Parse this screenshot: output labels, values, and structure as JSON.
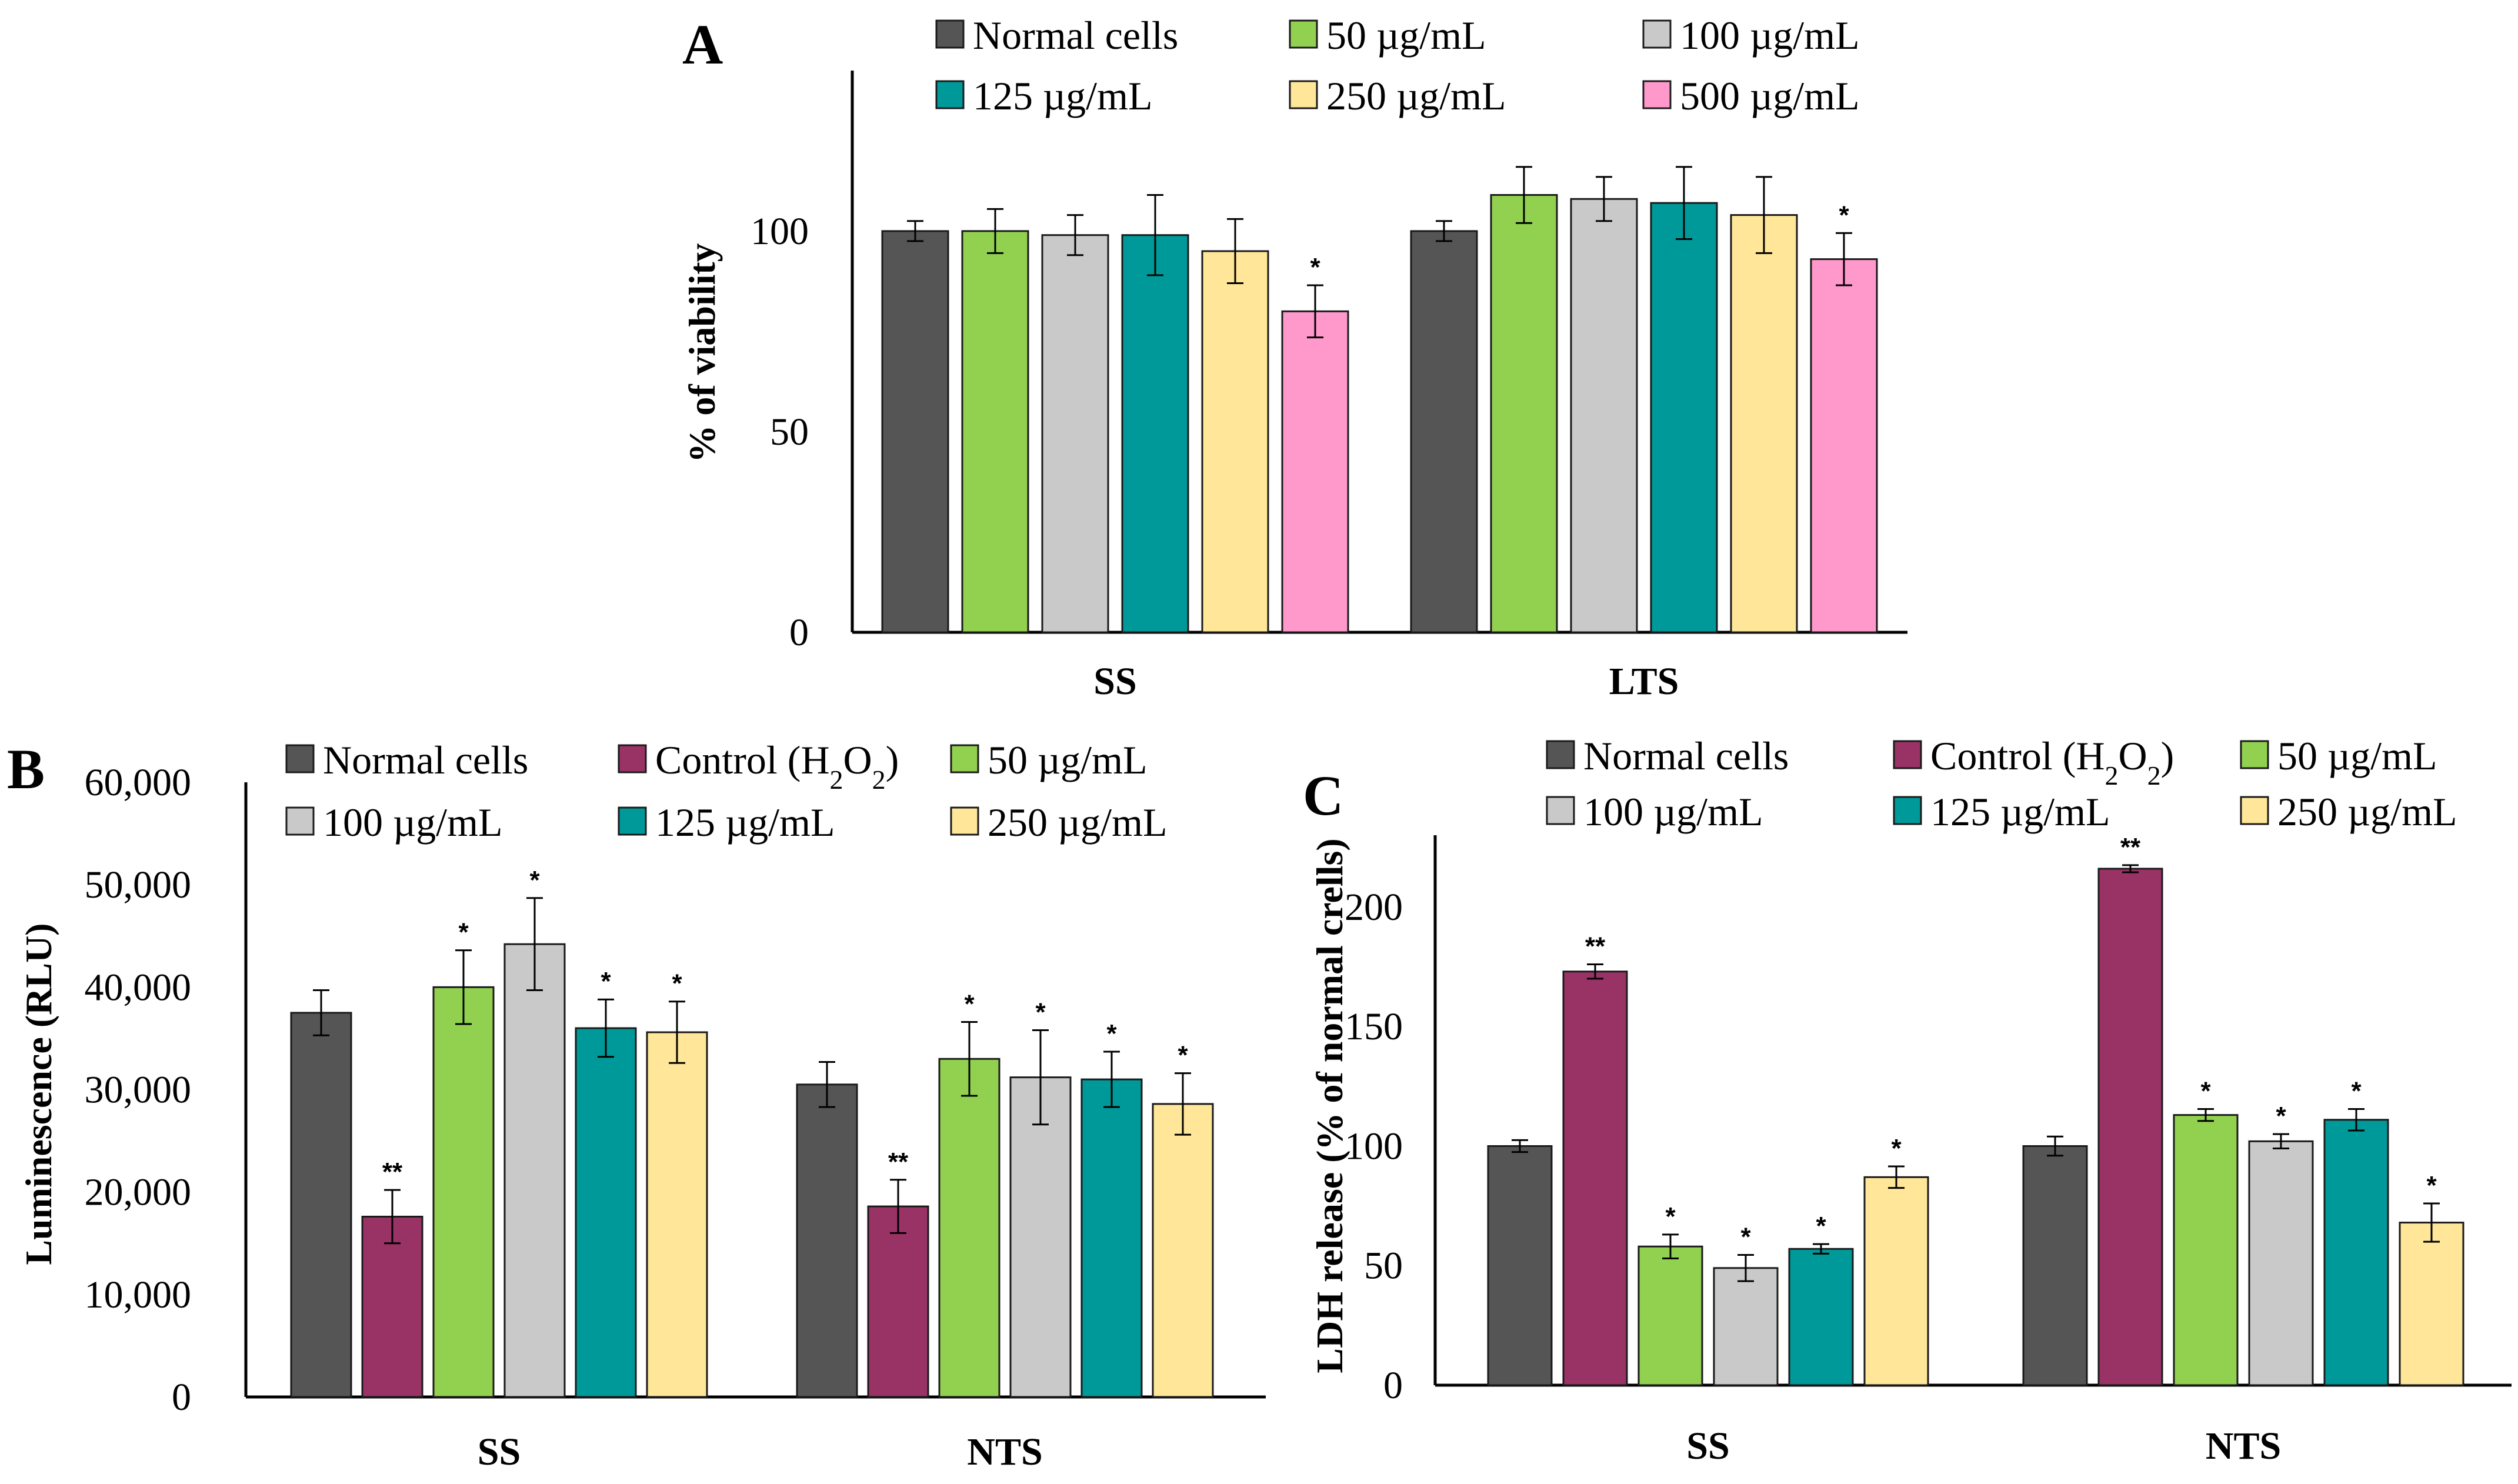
{
  "colors": {
    "Normal cells": "#555555",
    "Control (H2O2)": "#993366",
    "50 µg/mL": "#92d050",
    "100 µg/mL": "#c9c9c9",
    "125 µg/mL": "#009999",
    "250 µg/mL": "#ffe699",
    "500 µg/mL": "#ff99cc"
  },
  "chart_data": [
    {
      "panel": "A",
      "type": "bar",
      "ylabel": "% of viability",
      "xlabel": "",
      "ylim": [
        0,
        140
      ],
      "yticks": [
        0,
        50,
        100
      ],
      "categories": [
        "SS",
        "LTS"
      ],
      "series": [
        {
          "name": "Normal cells",
          "values": [
            100,
            100
          ],
          "errors": [
            2.5,
            2.5
          ],
          "sig": [
            "",
            ""
          ]
        },
        {
          "name": "50 µg/mL",
          "values": [
            100,
            109
          ],
          "errors": [
            5.5,
            7
          ],
          "sig": [
            "",
            ""
          ]
        },
        {
          "name": "100 µg/mL",
          "values": [
            99,
            108
          ],
          "errors": [
            5,
            5.5
          ],
          "sig": [
            "",
            ""
          ]
        },
        {
          "name": "125 µg/mL",
          "values": [
            99,
            107
          ],
          "errors": [
            10,
            9
          ],
          "sig": [
            "",
            ""
          ]
        },
        {
          "name": "250 µg/mL",
          "values": [
            95,
            104
          ],
          "errors": [
            8,
            9.5
          ],
          "sig": [
            "",
            ""
          ]
        },
        {
          "name": "500 µg/mL",
          "values": [
            80,
            93
          ],
          "errors": [
            6.5,
            6.5
          ],
          "sig": [
            "*",
            "*"
          ]
        }
      ]
    },
    {
      "panel": "B",
      "type": "bar",
      "ylabel": "Luminescence (RLU)",
      "xlabel": "",
      "ylim": [
        0,
        60000
      ],
      "yticks": [
        0,
        10000,
        20000,
        30000,
        40000,
        50000,
        60000
      ],
      "ytick_labels": [
        "0",
        "10,000",
        "20,000",
        "30,000",
        "40,000",
        "50,000",
        "60,000"
      ],
      "categories": [
        "SS",
        "NTS"
      ],
      "series": [
        {
          "name": "Normal cells",
          "values": [
            37500,
            30500
          ],
          "errors": [
            2200,
            2200
          ],
          "sig": [
            "",
            ""
          ]
        },
        {
          "name": "Control (H2O2)",
          "values": [
            17600,
            18600
          ],
          "errors": [
            2600,
            2600
          ],
          "sig": [
            "**",
            "**"
          ]
        },
        {
          "name": "50 µg/mL",
          "values": [
            40000,
            33000
          ],
          "errors": [
            3600,
            3600
          ],
          "sig": [
            "*",
            "*"
          ]
        },
        {
          "name": "100 µg/mL",
          "values": [
            44200,
            31200
          ],
          "errors": [
            4500,
            4600
          ],
          "sig": [
            "*",
            "*"
          ]
        },
        {
          "name": "125 µg/mL",
          "values": [
            36000,
            31000
          ],
          "errors": [
            2800,
            2700
          ],
          "sig": [
            "*",
            "*"
          ]
        },
        {
          "name": "250 µg/mL",
          "values": [
            35600,
            28600
          ],
          "errors": [
            3000,
            3000
          ],
          "sig": [
            "*",
            "*"
          ]
        }
      ]
    },
    {
      "panel": "C",
      "type": "bar",
      "ylabel": "LDH release (% of  normal crells)",
      "xlabel": "",
      "ylim": [
        0,
        230
      ],
      "yticks": [
        0,
        50,
        100,
        150,
        200
      ],
      "categories": [
        "SS",
        "NTS"
      ],
      "series": [
        {
          "name": "Normal cells",
          "values": [
            100,
            100
          ],
          "errors": [
            2.5,
            4
          ],
          "sig": [
            "",
            ""
          ]
        },
        {
          "name": "Control (H2O2)",
          "values": [
            173,
            216
          ],
          "errors": [
            3,
            1.5
          ],
          "sig": [
            "**",
            "**"
          ]
        },
        {
          "name": "50 µg/mL",
          "values": [
            58,
            113
          ],
          "errors": [
            5,
            2.5
          ],
          "sig": [
            "*",
            "*"
          ]
        },
        {
          "name": "100 µg/mL",
          "values": [
            49,
            102
          ],
          "errors": [
            5.5,
            3
          ],
          "sig": [
            "*",
            "*"
          ]
        },
        {
          "name": "125 µg/mL",
          "values": [
            57,
            111
          ],
          "errors": [
            2,
            4.5
          ],
          "sig": [
            "*",
            "*"
          ]
        },
        {
          "name": "250 µg/mL",
          "values": [
            87,
            68
          ],
          "errors": [
            4.5,
            8
          ],
          "sig": [
            "*",
            "*"
          ]
        }
      ]
    }
  ]
}
